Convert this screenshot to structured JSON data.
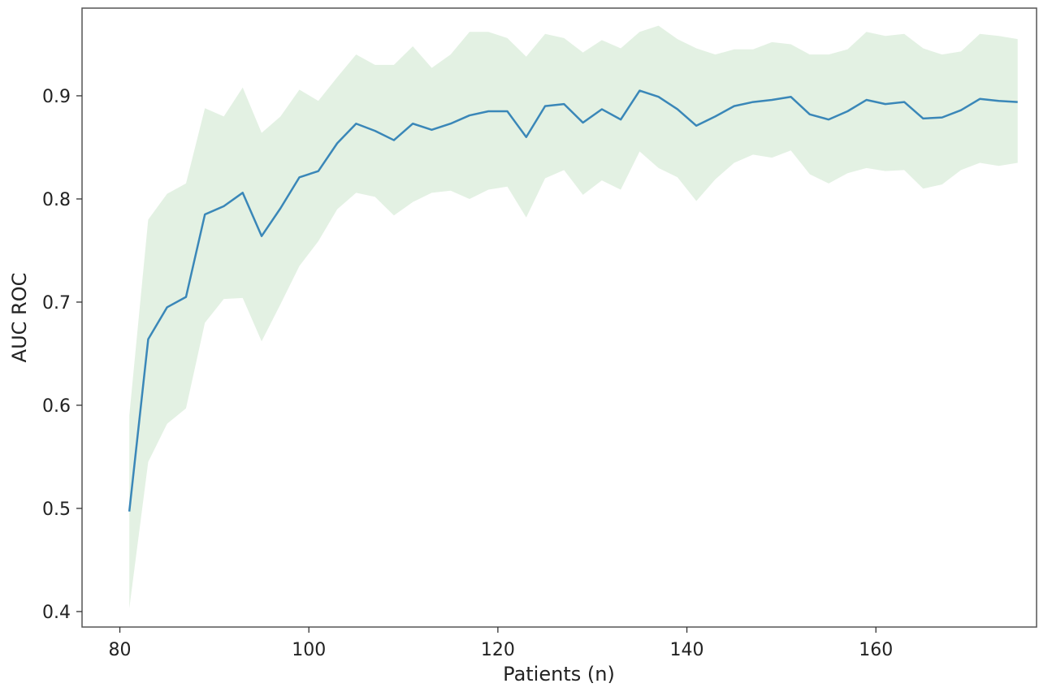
{
  "chart_data": {
    "type": "line",
    "title": "",
    "xlabel": "Patients (n)",
    "ylabel": "AUC ROC",
    "xlim": [
      76,
      177
    ],
    "ylim": [
      0.385,
      0.985
    ],
    "x_ticks": [
      80,
      100,
      120,
      140,
      160
    ],
    "y_ticks": [
      0.4,
      0.5,
      0.6,
      0.7,
      0.8,
      0.9
    ],
    "grid": false,
    "legend": "none",
    "colors": {
      "line": "#3a87b8",
      "band": "#e3f1e3",
      "axes": "#555555"
    },
    "series": [
      {
        "x": [
          81,
          83,
          85,
          87,
          89,
          91,
          93,
          95,
          97,
          99,
          101,
          103,
          105,
          107,
          109,
          111,
          113,
          115,
          117,
          119,
          121,
          123,
          125,
          127,
          129,
          131,
          133,
          135,
          137,
          139,
          141,
          143,
          145,
          147,
          149,
          151,
          153,
          155,
          157,
          159,
          161,
          163,
          165,
          167,
          169,
          171,
          173,
          175
        ],
        "mean": [
          0.497,
          0.664,
          0.695,
          0.705,
          0.785,
          0.793,
          0.806,
          0.764,
          0.791,
          0.821,
          0.827,
          0.854,
          0.873,
          0.866,
          0.857,
          0.873,
          0.867,
          0.873,
          0.881,
          0.885,
          0.885,
          0.86,
          0.89,
          0.892,
          0.874,
          0.887,
          0.877,
          0.905,
          0.899,
          0.887,
          0.871,
          0.88,
          0.89,
          0.894,
          0.896,
          0.899,
          0.882,
          0.877,
          0.885,
          0.896,
          0.892,
          0.894,
          0.878,
          0.879,
          0.886,
          0.897,
          0.895,
          0.894
        ],
        "upper": [
          0.59,
          0.78,
          0.805,
          0.815,
          0.888,
          0.88,
          0.908,
          0.864,
          0.88,
          0.906,
          0.895,
          0.918,
          0.94,
          0.93,
          0.93,
          0.948,
          0.927,
          0.94,
          0.962,
          0.962,
          0.956,
          0.938,
          0.96,
          0.956,
          0.942,
          0.954,
          0.946,
          0.962,
          0.968,
          0.955,
          0.946,
          0.94,
          0.945,
          0.945,
          0.952,
          0.95,
          0.94,
          0.94,
          0.945,
          0.962,
          0.958,
          0.96,
          0.946,
          0.94,
          0.943,
          0.96,
          0.958,
          0.955
        ],
        "lower": [
          0.403,
          0.545,
          0.582,
          0.597,
          0.68,
          0.703,
          0.704,
          0.662,
          0.698,
          0.735,
          0.759,
          0.79,
          0.806,
          0.802,
          0.784,
          0.797,
          0.806,
          0.808,
          0.8,
          0.809,
          0.812,
          0.782,
          0.82,
          0.828,
          0.804,
          0.818,
          0.809,
          0.846,
          0.83,
          0.821,
          0.798,
          0.819,
          0.835,
          0.843,
          0.84,
          0.847,
          0.824,
          0.815,
          0.825,
          0.83,
          0.827,
          0.828,
          0.81,
          0.814,
          0.828,
          0.835,
          0.832,
          0.835
        ]
      }
    ]
  }
}
